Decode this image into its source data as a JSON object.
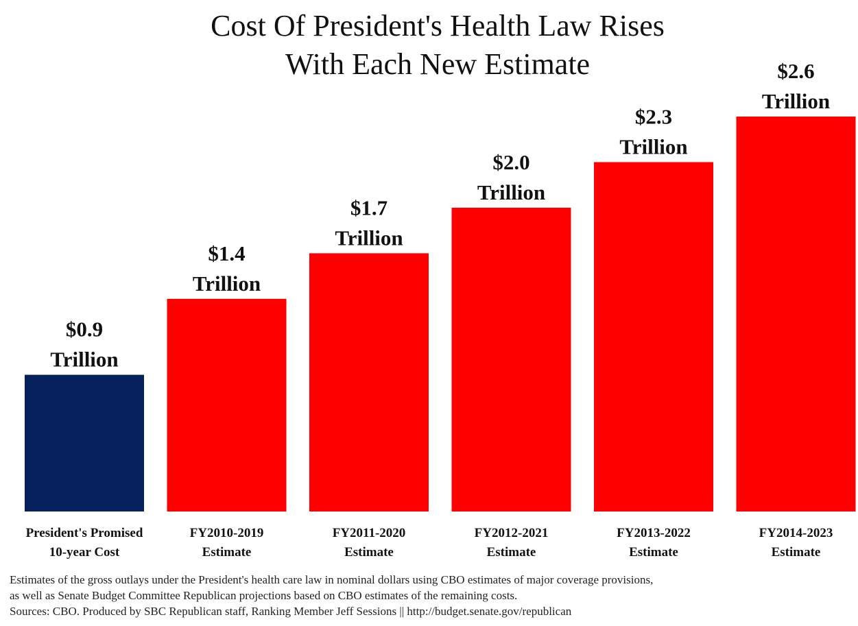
{
  "title": {
    "line1": "Cost Of President's Health Law Rises",
    "line2": "With Each New Estimate"
  },
  "chart_data": {
    "type": "bar",
    "categories": [
      [
        "President's Promised",
        "10-year Cost"
      ],
      [
        "FY2010-2019",
        "Estimate"
      ],
      [
        "FY2011-2020",
        "Estimate"
      ],
      [
        "FY2012-2021",
        "Estimate"
      ],
      [
        "FY2013-2022",
        "Estimate"
      ],
      [
        "FY2014-2023",
        "Estimate"
      ]
    ],
    "values": [
      0.9,
      1.4,
      1.7,
      2.0,
      2.3,
      2.6
    ],
    "data_labels": [
      [
        "$0.9",
        "Trillion"
      ],
      [
        "$1.4",
        "Trillion"
      ],
      [
        "$1.7",
        "Trillion"
      ],
      [
        "$2.0",
        "Trillion"
      ],
      [
        "$2.3",
        "Trillion"
      ],
      [
        "$2.6",
        "Trillion"
      ]
    ],
    "bar_colors": [
      "#06205c",
      "#ff0000",
      "#ff0000",
      "#ff0000",
      "#ff0000",
      "#ff0000"
    ],
    "ylim": [
      0,
      2.6
    ],
    "grid": false,
    "legend": "none",
    "xlabel": "",
    "ylabel": ""
  },
  "notes": {
    "line1": "Estimates of the gross outlays under the President's health care law in nominal dollars using CBO estimates of major coverage provisions,",
    "line2": "as well as Senate Budget Committee Republican projections based on CBO estimates of the remaining costs.",
    "line3": "Sources: CBO. Produced by SBC Republican staff, Ranking Member Jeff Sessions || http://budget.senate.gov/republican"
  }
}
